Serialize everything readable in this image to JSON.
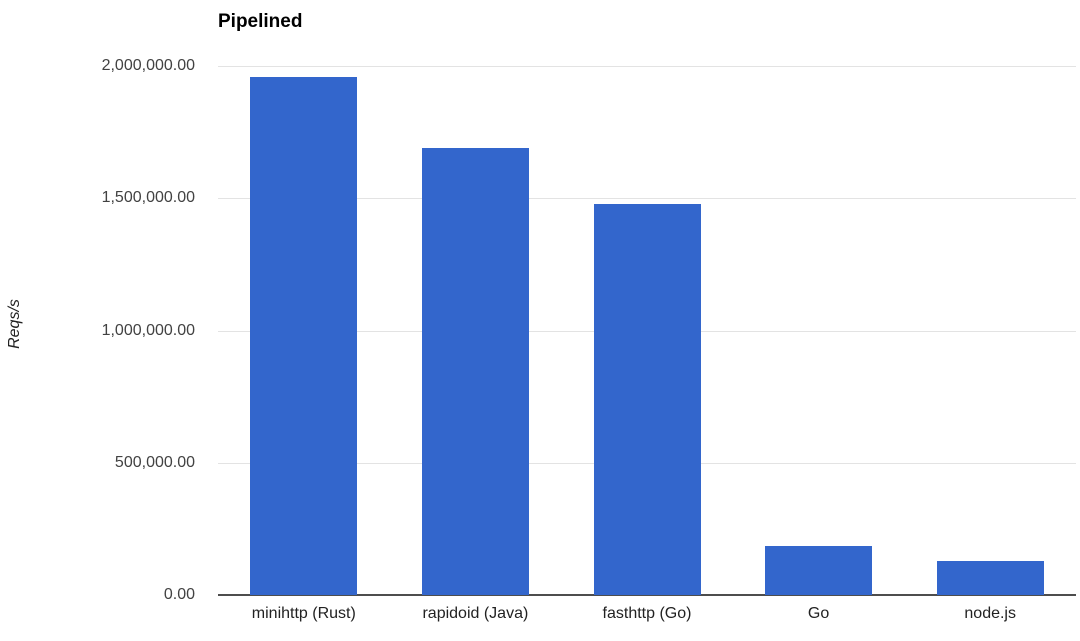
{
  "chart_data": {
    "type": "bar",
    "title": "Pipelined",
    "ylabel": "Reqs/s",
    "xlabel": "",
    "categories": [
      "minihttp (Rust)",
      "rapidoid (Java)",
      "fasthttp (Go)",
      "Go",
      "node.js"
    ],
    "values": [
      1960000,
      1690000,
      1480000,
      185000,
      127000
    ],
    "ylim": [
      0,
      2000000
    ],
    "ytick_labels": [
      "0.00",
      "500,000.00",
      "1,000,000.00",
      "1,500,000.00",
      "2,000,000.00"
    ],
    "grid": true,
    "legend": "none",
    "colors": {
      "bar": "#3366cc",
      "gridline": "#e3e3e3",
      "axis_line": "#4d4d4d",
      "tick_text": "#424242",
      "category_text": "#222222",
      "title_text": "#000000"
    }
  }
}
